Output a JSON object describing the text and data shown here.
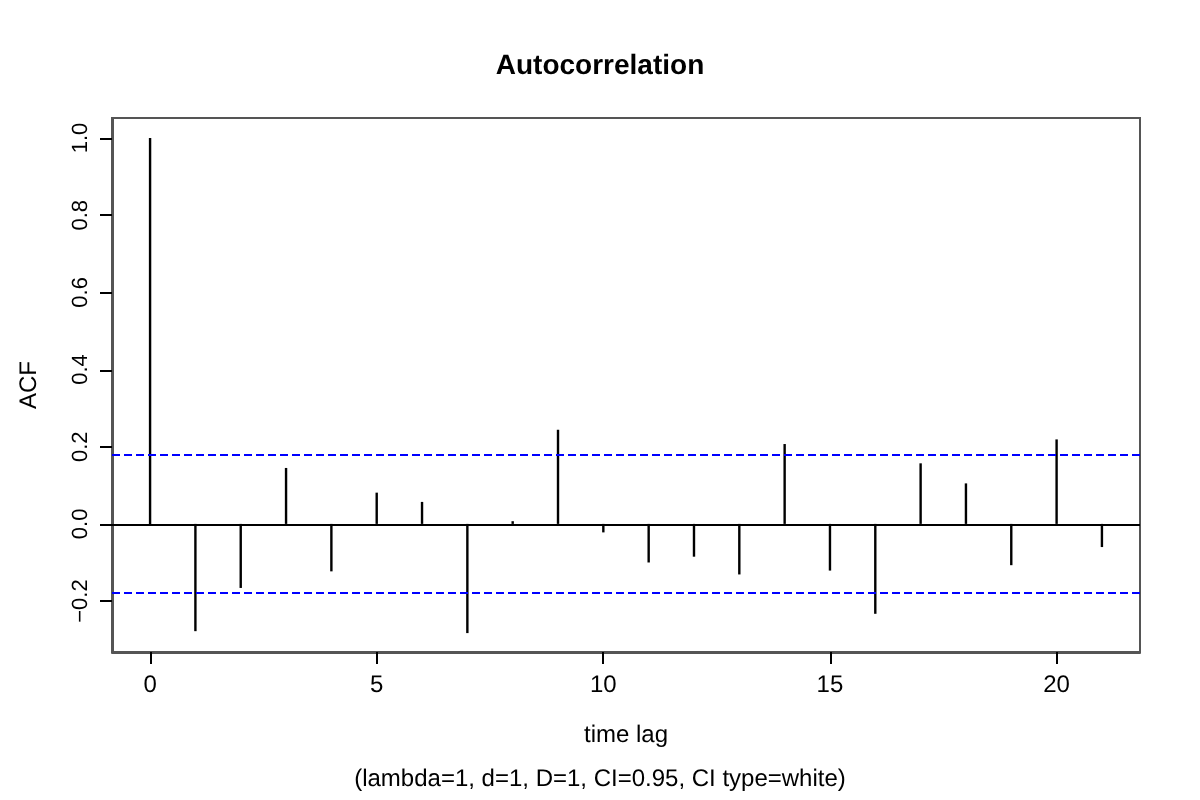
{
  "chart_data": {
    "type": "bar",
    "title": "Autocorrelation",
    "xlabel": "time lag",
    "ylabel": "ACF",
    "annotations": [
      "(lambda=1, d=1, D=1, CI=0.95, CI type=white)"
    ],
    "x": [
      0,
      1,
      2,
      3,
      4,
      5,
      6,
      7,
      8,
      9,
      10,
      11,
      12,
      13,
      14,
      15,
      16,
      17,
      18,
      19,
      20,
      21
    ],
    "values": [
      1.0,
      -0.278,
      -0.166,
      0.145,
      -0.123,
      0.081,
      0.057,
      -0.283,
      0.007,
      0.244,
      -0.022,
      -0.1,
      -0.085,
      -0.131,
      0.207,
      -0.121,
      -0.233,
      0.157,
      0.105,
      -0.107,
      0.219,
      -0.06
    ],
    "color": "#000000",
    "xlim": [
      -0.84,
      21.84
    ],
    "xticks": [
      0,
      5,
      10,
      15,
      20
    ],
    "ylim": [
      -0.332,
      1.052
    ],
    "yticks": [
      {
        "value": -0.2,
        "label": "−0.2"
      },
      {
        "value": 0,
        "label": "0.0"
      },
      {
        "value": 0.2,
        "label": "0.2"
      },
      {
        "value": 0.4,
        "label": "0.4"
      },
      {
        "value": 0.6,
        "label": "0.6"
      },
      {
        "value": 0.8,
        "label": "0.8"
      },
      {
        "value": 1.0,
        "label": "1.0"
      }
    ],
    "ref_lines": [
      {
        "axis": "y",
        "value": 0.185,
        "label": null,
        "color": "#0000ff",
        "line_style": "dashed"
      },
      {
        "axis": "y",
        "value": -0.185,
        "label": null,
        "color": "#0000ff",
        "line_style": "dashed"
      },
      {
        "axis": "y",
        "value": 0,
        "label": null,
        "color": "#000000",
        "line_style": "solid"
      }
    ],
    "grid": false
  }
}
